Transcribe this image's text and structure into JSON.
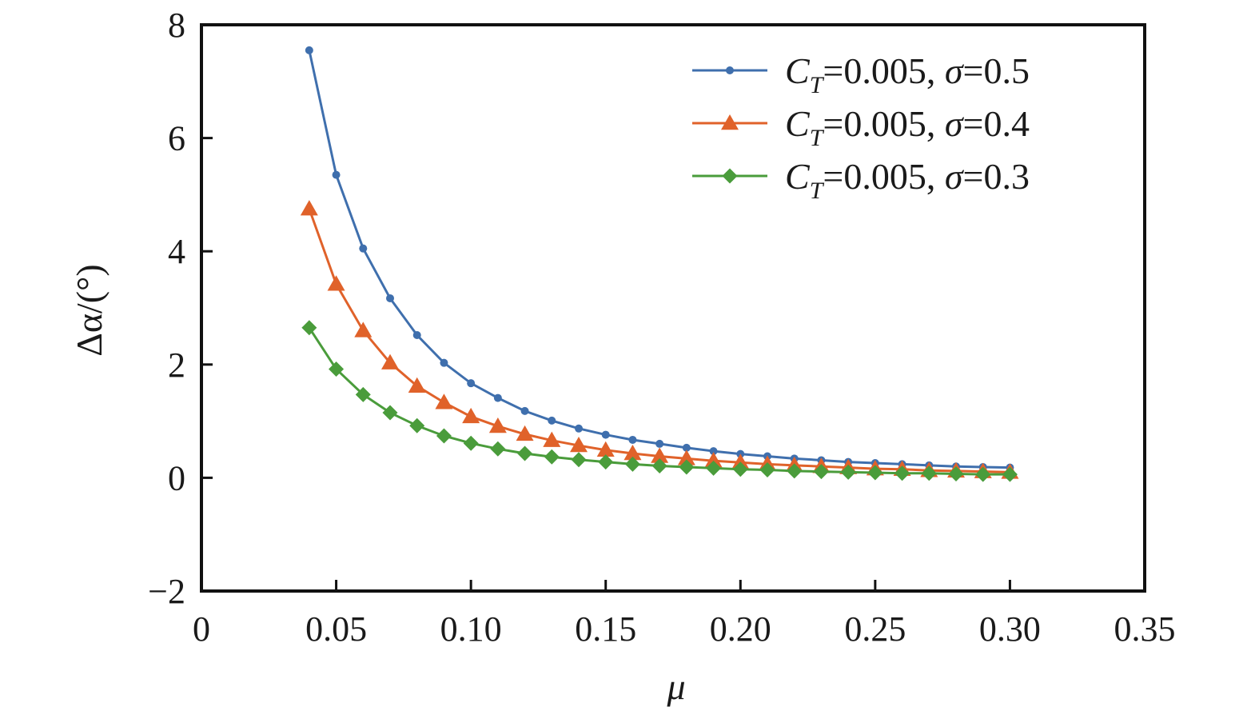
{
  "chart_data": {
    "type": "line",
    "xlabel": "μ",
    "ylabel": "Δα/(°)",
    "xlim": [
      0,
      0.35
    ],
    "ylim": [
      -2,
      8
    ],
    "xticks": [
      0,
      0.05,
      0.1,
      0.15,
      0.2,
      0.25,
      0.3,
      0.35
    ],
    "xtick_labels": [
      "0",
      "0.05",
      "0.10",
      "0.15",
      "0.20",
      "0.25",
      "0.30",
      "0.35"
    ],
    "yticks": [
      -2,
      0,
      2,
      4,
      6,
      8
    ],
    "ytick_labels": [
      "−2",
      "0",
      "2",
      "4",
      "6",
      "8"
    ],
    "grid": false,
    "legend_position": "top-right",
    "x": [
      0.04,
      0.05,
      0.06,
      0.07,
      0.08,
      0.09,
      0.1,
      0.11,
      0.12,
      0.13,
      0.14,
      0.15,
      0.16,
      0.17,
      0.18,
      0.19,
      0.2,
      0.21,
      0.22,
      0.23,
      0.24,
      0.25,
      0.26,
      0.27,
      0.28,
      0.29,
      0.3
    ],
    "series": [
      {
        "name": "C_T=0.005, σ=0.5",
        "label_main": "C",
        "label_sub": "T",
        "label_rest_1": "=0.005, ",
        "label_sigma": "σ",
        "label_rest_2": "=0.5",
        "color": "#3f6fad",
        "marker": "circle",
        "values": [
          7.55,
          5.35,
          4.05,
          3.17,
          2.52,
          2.03,
          1.67,
          1.41,
          1.18,
          1.01,
          0.87,
          0.76,
          0.67,
          0.6,
          0.53,
          0.47,
          0.42,
          0.38,
          0.34,
          0.31,
          0.28,
          0.26,
          0.24,
          0.22,
          0.2,
          0.19,
          0.18
        ]
      },
      {
        "name": "C_T=0.005, σ=0.4",
        "label_main": "C",
        "label_sub": "T",
        "label_rest_1": "=0.005, ",
        "label_sigma": "σ",
        "label_rest_2": "=0.4",
        "color": "#e0622a",
        "marker": "triangle",
        "values": [
          4.75,
          3.42,
          2.6,
          2.03,
          1.62,
          1.33,
          1.08,
          0.91,
          0.77,
          0.66,
          0.57,
          0.49,
          0.43,
          0.38,
          0.34,
          0.3,
          0.27,
          0.24,
          0.22,
          0.2,
          0.18,
          0.16,
          0.15,
          0.13,
          0.12,
          0.11,
          0.1
        ]
      },
      {
        "name": "C_T=0.005, σ=0.3",
        "label_main": "C",
        "label_sub": "T",
        "label_rest_1": "=0.005, ",
        "label_sigma": "σ",
        "label_rest_2": "=0.3",
        "color": "#4a9c3b",
        "marker": "diamond",
        "values": [
          2.65,
          1.92,
          1.47,
          1.15,
          0.92,
          0.74,
          0.61,
          0.51,
          0.43,
          0.37,
          0.32,
          0.28,
          0.24,
          0.21,
          0.19,
          0.17,
          0.15,
          0.14,
          0.12,
          0.11,
          0.1,
          0.09,
          0.08,
          0.08,
          0.07,
          0.06,
          0.06
        ]
      }
    ]
  }
}
